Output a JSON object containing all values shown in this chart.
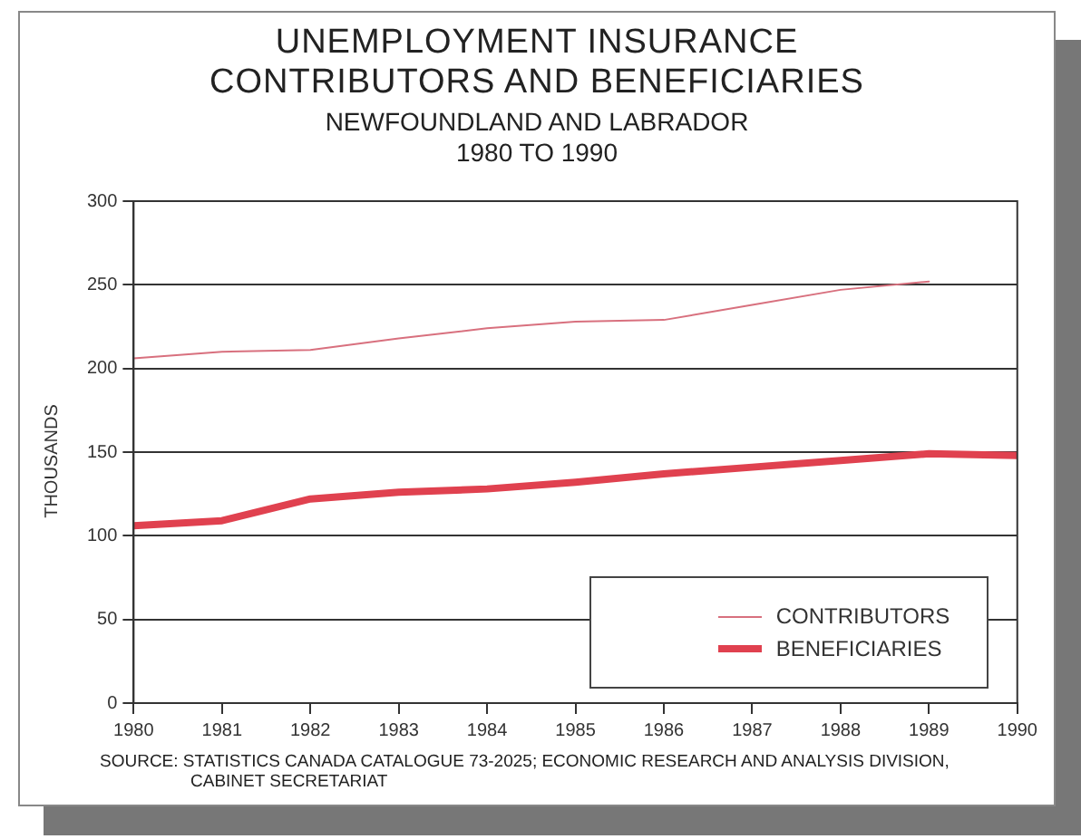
{
  "chart_data": {
    "type": "line",
    "title": "UNEMPLOYMENT INSURANCE CONTRIBUTORS AND BENEFICIARIES",
    "subtitle": "NEWFOUNDLAND AND LABRADOR 1980 TO 1990",
    "ylabel": "THOUSANDS",
    "x": [
      1980,
      1981,
      1982,
      1983,
      1984,
      1985,
      1986,
      1987,
      1988,
      1989,
      1990
    ],
    "series": [
      {
        "name": "CONTRIBUTORS",
        "color": "#d8707e",
        "values": [
          206,
          210,
          211,
          218,
          224,
          228,
          229,
          238,
          247,
          252,
          null
        ]
      },
      {
        "name": "BENEFICIARIES",
        "color": "#e0414f",
        "values": [
          106,
          109,
          122,
          126,
          128,
          132,
          137,
          141,
          145,
          149,
          148
        ]
      }
    ],
    "xlim": [
      1980,
      1990
    ],
    "xticks": [
      1980,
      1981,
      1982,
      1983,
      1984,
      1985,
      1986,
      1987,
      1988,
      1989,
      1990
    ],
    "ylim": [
      0,
      300
    ],
    "yticks": [
      0,
      50,
      100,
      150,
      200,
      250,
      300
    ],
    "grid": "y",
    "legend": "bottom right",
    "marker": "none",
    "line_style": "solid",
    "annotations": [
      "SOURCE: STATISTICS CANADA CATALOGUE 73-2025; ECONOMIC RESEARCH AND ANALYSIS DIVISION, CABINET SECRETARIAT"
    ]
  }
}
